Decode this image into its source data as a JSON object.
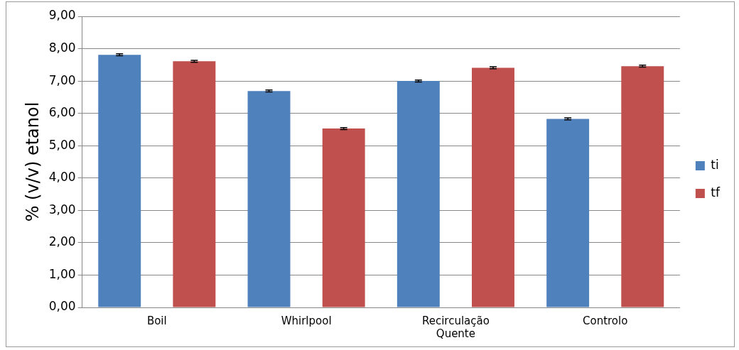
{
  "chart_data": {
    "type": "bar",
    "ylabel": "% (v/v) etanol",
    "categories": [
      "Boil",
      "Whirlpool",
      "Recirculação Quente",
      "Controlo"
    ],
    "series": [
      {
        "name": "ti",
        "color": "#4f81bd",
        "values": [
          7.81,
          6.69,
          7.0,
          5.83
        ],
        "errors": [
          0.03,
          0.03,
          0.03,
          0.03
        ]
      },
      {
        "name": "tf",
        "color": "#c0504d",
        "values": [
          7.61,
          5.53,
          7.41,
          7.46
        ],
        "errors": [
          0.03,
          0.03,
          0.03,
          0.03
        ]
      }
    ],
    "ylim": [
      0,
      9
    ],
    "yticks": [
      {
        "value": 0,
        "label": "0,00"
      },
      {
        "value": 1,
        "label": "1,00"
      },
      {
        "value": 2,
        "label": "2,00"
      },
      {
        "value": 3,
        "label": "3,00"
      },
      {
        "value": 4,
        "label": "4,00"
      },
      {
        "value": 5,
        "label": "5,00"
      },
      {
        "value": 6,
        "label": "6,00"
      },
      {
        "value": 7,
        "label": "7,00"
      },
      {
        "value": 8,
        "label": "8,00"
      },
      {
        "value": 9,
        "label": "9,00"
      }
    ],
    "grid": "y",
    "legend": "right"
  }
}
